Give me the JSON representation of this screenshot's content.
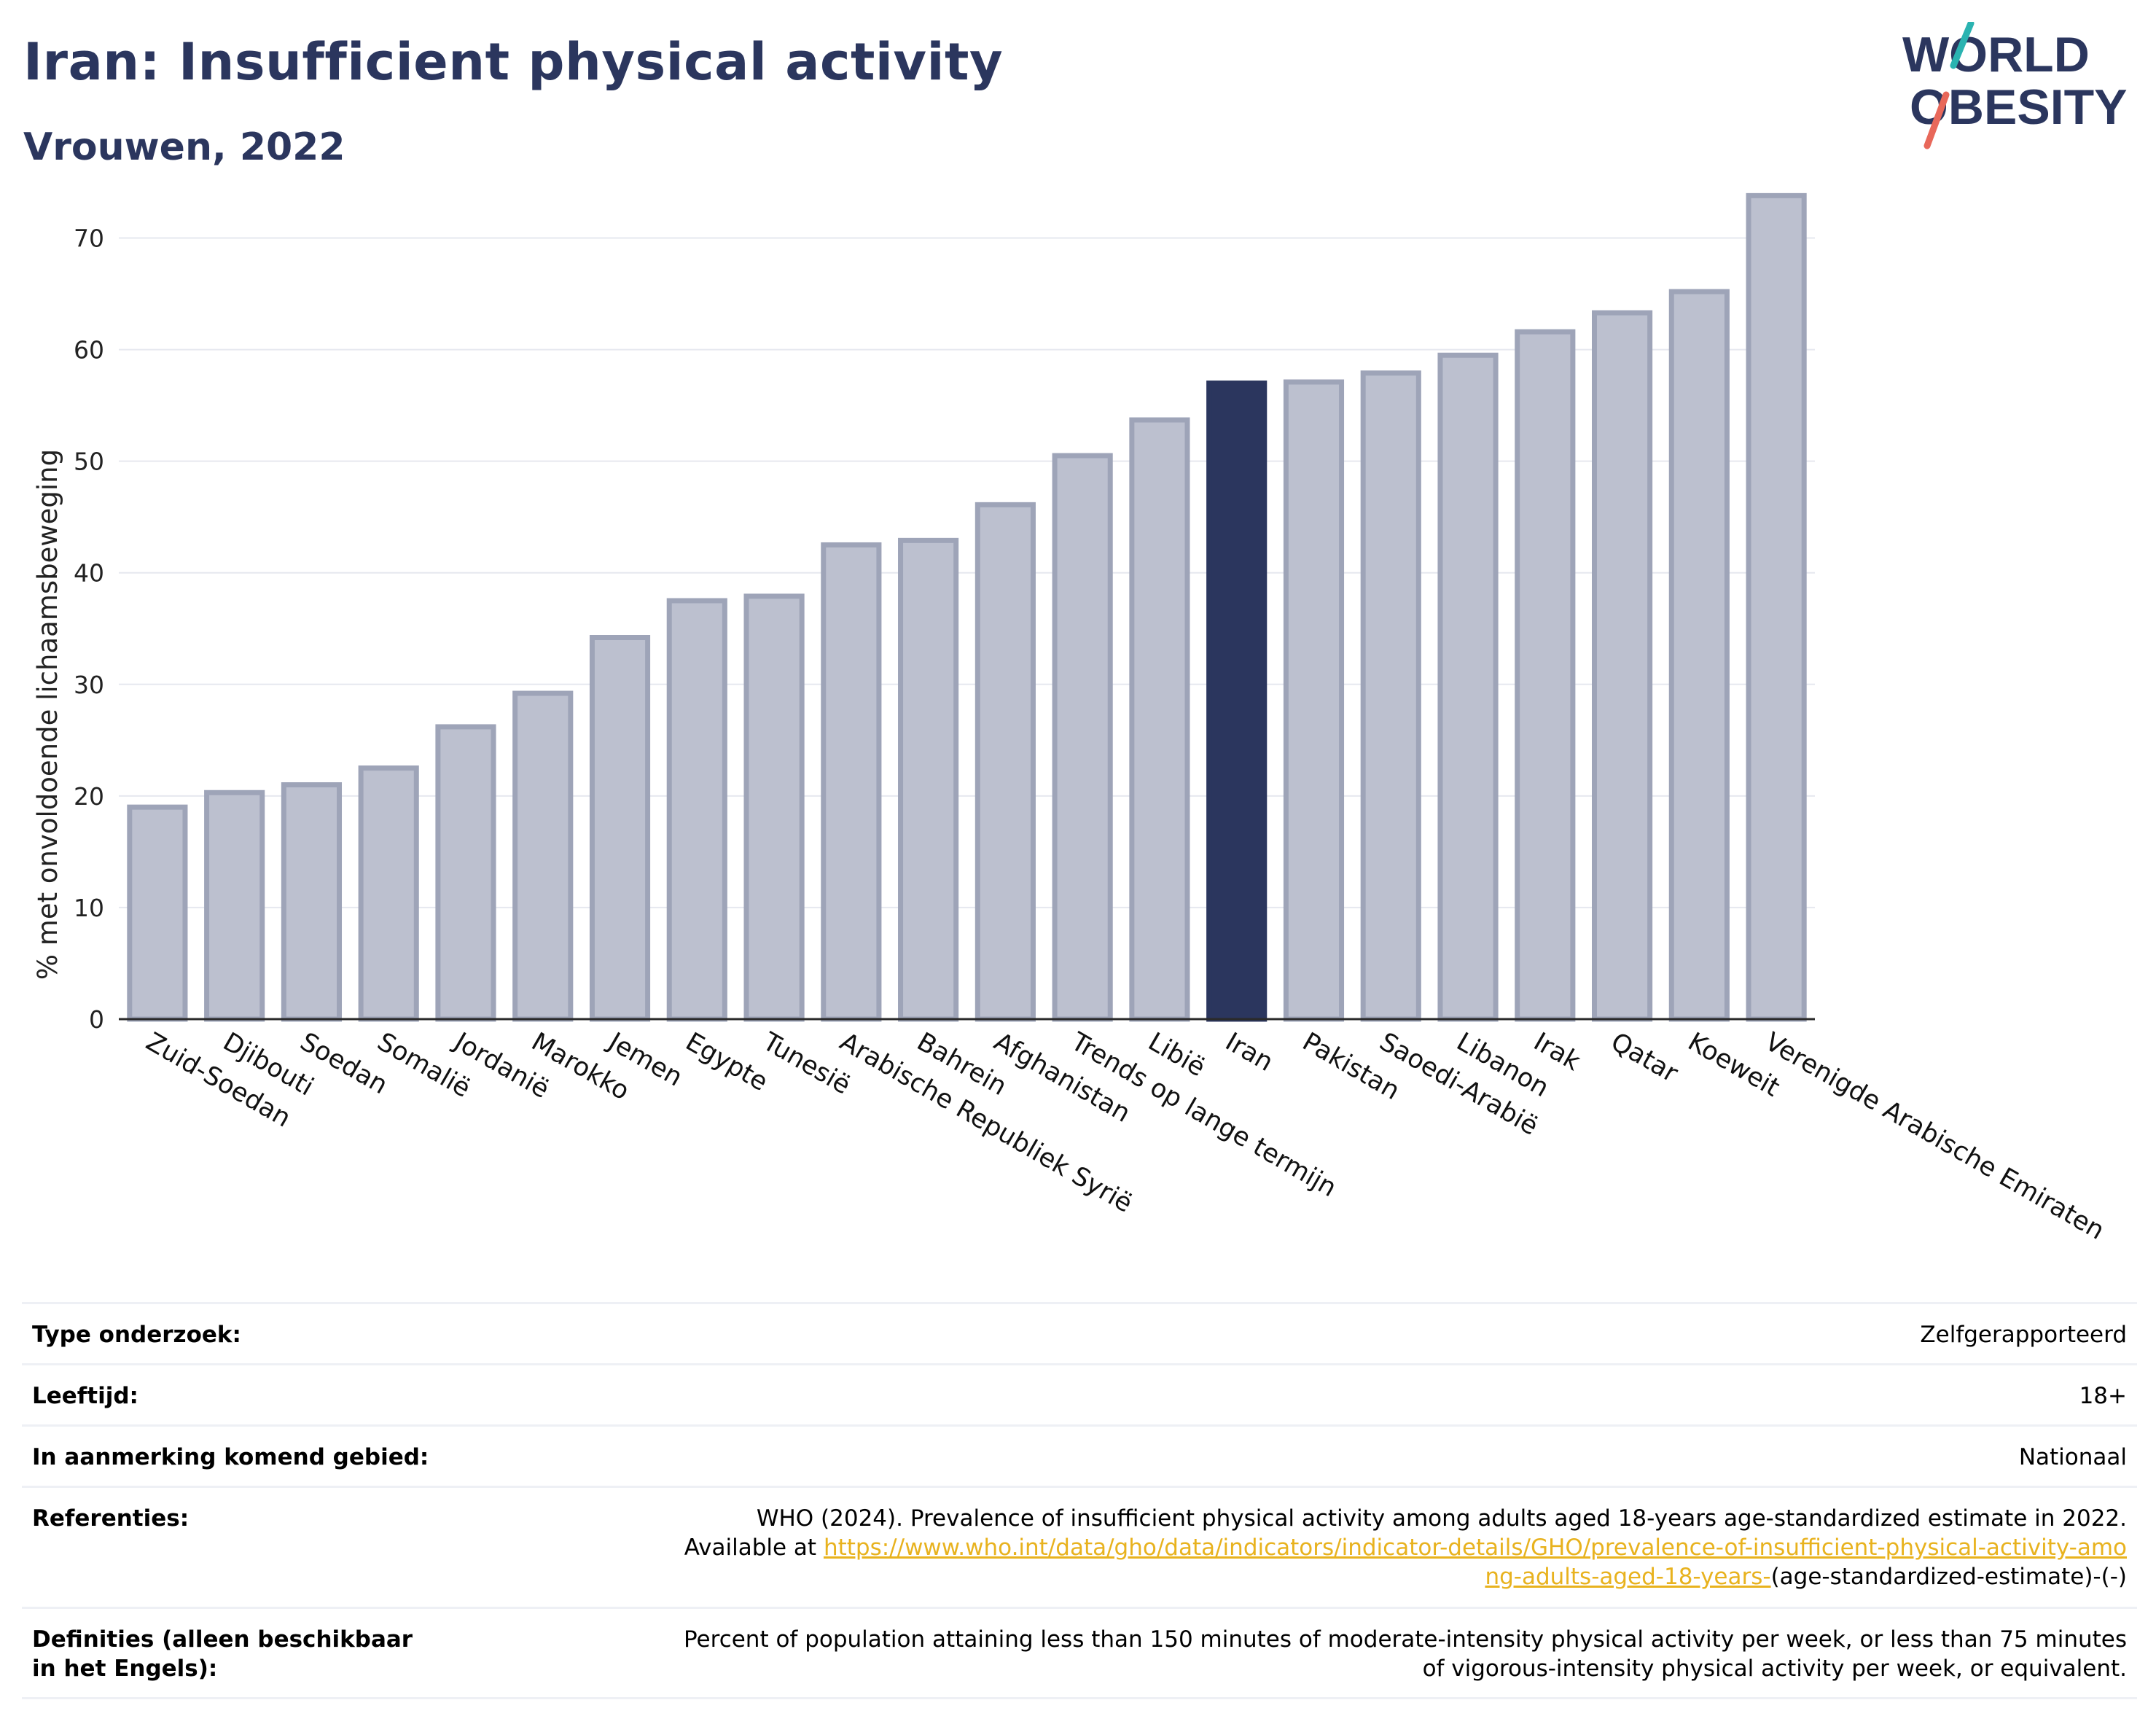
{
  "header": {
    "title": "Iran: Insufficient physical activity",
    "subtitle": "Vrouwen, 2022"
  },
  "logo": {
    "line1": "WORLD",
    "line2": "OBESITY"
  },
  "colors": {
    "title": "#2b365e",
    "bar": "#bcc0cf",
    "bar_border": "#9ea4b8",
    "highlight_bar": "#2b365e",
    "grid": "#e6e8ef",
    "link": "#e8b21e",
    "logo_slash_top": "#2bb3b1",
    "logo_slash_bottom": "#e8685a"
  },
  "chart_data": {
    "type": "bar",
    "ylabel": "% met onvoldoende lichaamsbeweging",
    "xlabel": "",
    "ylim": [
      0,
      75
    ],
    "yticks": [
      0,
      10,
      20,
      30,
      40,
      50,
      60,
      70
    ],
    "grid": true,
    "highlight": "Iran",
    "categories": [
      "Zuid-Soedan",
      "Djibouti",
      "Soedan",
      "Somalië",
      "Jordanië",
      "Marokko",
      "Jemen",
      "Egypte",
      "Tunesië",
      "Arabische Republiek Syrië",
      "Bahrein",
      "Afghanistan",
      "Trends op lange termijn",
      "Libië",
      "Iran",
      "Pakistan",
      "Saoedi-Arabië",
      "Libanon",
      "Irak",
      "Qatar",
      "Koeweit",
      "Verenigde Arabische Emiraten"
    ],
    "values": [
      19.0,
      20.3,
      21.0,
      22.5,
      26.2,
      29.2,
      34.2,
      37.5,
      37.9,
      42.5,
      42.9,
      46.1,
      50.5,
      53.7,
      57.0,
      57.1,
      57.9,
      59.5,
      61.6,
      63.3,
      65.2,
      73.8
    ]
  },
  "info": {
    "rows": [
      {
        "key": "Type onderzoek:",
        "value": "Zelfgerapporteerd"
      },
      {
        "key": "Leeftijd:",
        "value": "18+"
      },
      {
        "key": "In aanmerking komend gebied:",
        "value": "Nationaal"
      }
    ],
    "references": {
      "key": "Referenties:",
      "text": "WHO (2024). Prevalence of insufficient physical activity among adults aged 18-years age-standardized estimate in 2022. Available at ",
      "link": "https://www.who.int/data/gho/data/indicators/indicator-details/GHO/prevalence-of-insufficient-physical-activity-among-adults-aged-18-years-",
      "suffix": "(age-standardized-estimate)-(-)"
    },
    "definitions": {
      "key": "Definities (alleen beschikbaar in het Engels):",
      "value": "Percent of population attaining less than 150 minutes of moderate-intensity physical activity per week, or less than 75 minutes of vigorous-intensity physical activity per week, or equivalent."
    }
  }
}
